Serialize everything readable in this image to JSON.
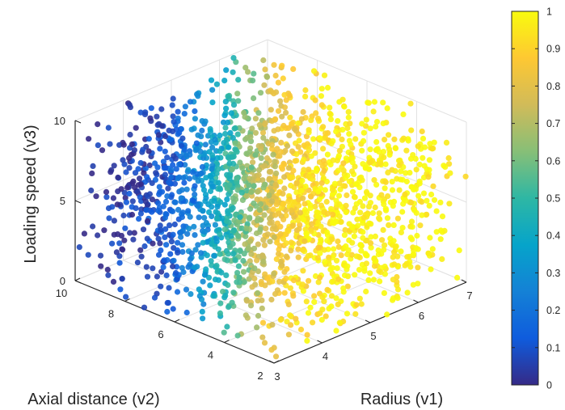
{
  "chart_data": {
    "type": "scatter",
    "projection": "3d",
    "title": "",
    "xlabel": "Radius (v1)",
    "ylabel": "Axial distance (v2)",
    "zlabel": "Loading speed (v3)",
    "xlim": [
      3,
      7
    ],
    "ylim": [
      2,
      10
    ],
    "zlim": [
      0,
      10
    ],
    "xticks": [
      "3",
      "4",
      "5",
      "6",
      "7"
    ],
    "yticks": [
      "2",
      "4",
      "6",
      "8",
      "10"
    ],
    "zticks": [
      "0",
      "5",
      "10"
    ],
    "grid": true,
    "color_variable_range": [
      0,
      1
    ],
    "colorbar": {
      "location": "right",
      "ticks": [
        "0",
        "0.1",
        "0.2",
        "0.3",
        "0.4",
        "0.5",
        "0.6",
        "0.7",
        "0.8",
        "0.9",
        "1"
      ],
      "colormap": "parula",
      "stops": [
        "#352a87",
        "#0f5cdd",
        "#1481d6",
        "#06a4ca",
        "#2eb7a4",
        "#87bf77",
        "#d1bb59",
        "#fec832",
        "#f9fb0e"
      ]
    },
    "marker": "filled-circle",
    "n_points": 2000,
    "distribution": "uniform v1 in [3,7], v2 in [2,10], v3 in [0,10]; color increases with v1 and decreases with v2",
    "series": []
  }
}
